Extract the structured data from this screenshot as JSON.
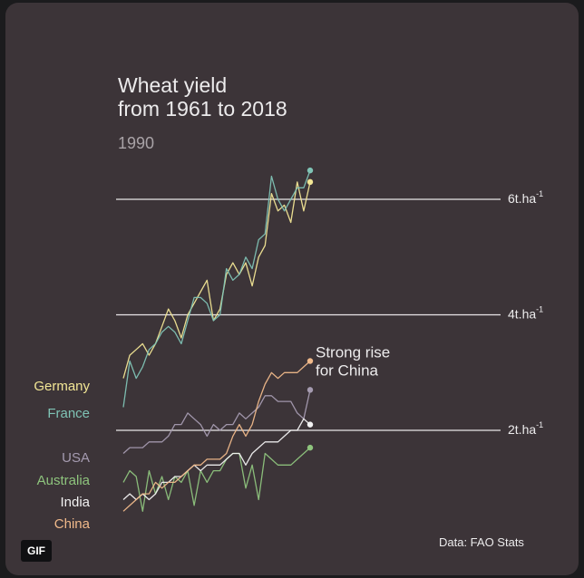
{
  "title_line1": "Wheat yield",
  "title_line2": "from 1961 to 2018",
  "current_year": "1990",
  "source": "Data: FAO Stats",
  "badge": "GIF",
  "legend": [
    {
      "name": "Germany",
      "color": "#f2e695"
    },
    {
      "name": "France",
      "color": "#7fc3b5"
    },
    {
      "name": "USA",
      "color": "#a59bb0"
    },
    {
      "name": "Australia",
      "color": "#8ec47d"
    },
    {
      "name": "India",
      "color": "#f2f2f2"
    },
    {
      "name": "China",
      "color": "#f0b98a"
    }
  ],
  "annotation": {
    "line1": "Strong rise",
    "line2": "for China"
  },
  "chart_data": {
    "type": "line",
    "title": "Wheat yield from 1961 to 2018",
    "subtitle": "1990",
    "y_unit": "t.ha",
    "y_unit_exponent": "-1",
    "ylim": [
      0,
      8
    ],
    "gridlines": [
      2,
      4,
      6
    ],
    "grid_labels": [
      "2t.ha",
      "4t.ha",
      "6t.ha"
    ],
    "x": [
      1961,
      1962,
      1963,
      1964,
      1965,
      1966,
      1967,
      1968,
      1969,
      1970,
      1971,
      1972,
      1973,
      1974,
      1975,
      1976,
      1977,
      1978,
      1979,
      1980,
      1981,
      1982,
      1983,
      1984,
      1985,
      1986,
      1987,
      1988,
      1989,
      1990
    ],
    "series": [
      {
        "name": "Germany",
        "color": "#f2e695",
        "values": [
          2.9,
          3.3,
          3.4,
          3.5,
          3.3,
          3.5,
          3.8,
          4.1,
          3.9,
          3.6,
          4.0,
          4.2,
          4.4,
          4.6,
          3.9,
          4.1,
          4.7,
          4.9,
          4.7,
          4.9,
          4.5,
          5.0,
          5.2,
          6.1,
          5.8,
          5.9,
          5.6,
          6.3,
          5.8,
          6.3
        ]
      },
      {
        "name": "France",
        "color": "#7fc3b5",
        "values": [
          2.4,
          3.2,
          2.9,
          3.1,
          3.4,
          3.5,
          3.7,
          3.8,
          3.7,
          3.5,
          3.9,
          4.3,
          4.3,
          4.2,
          3.9,
          4.0,
          4.8,
          4.6,
          4.7,
          5.0,
          4.8,
          5.3,
          5.4,
          6.4,
          6.0,
          5.8,
          6.0,
          6.2,
          6.2,
          6.5
        ]
      },
      {
        "name": "USA",
        "color": "#a59bb0",
        "values": [
          1.6,
          1.7,
          1.7,
          1.7,
          1.8,
          1.8,
          1.8,
          1.9,
          2.1,
          2.1,
          2.3,
          2.2,
          2.1,
          1.9,
          2.1,
          2.0,
          2.1,
          2.1,
          2.3,
          2.2,
          2.3,
          2.4,
          2.6,
          2.6,
          2.5,
          2.5,
          2.5,
          2.3,
          2.2,
          2.7
        ]
      },
      {
        "name": "Australia",
        "color": "#8ec47d",
        "values": [
          1.1,
          1.3,
          1.2,
          0.6,
          1.3,
          0.9,
          1.2,
          0.8,
          1.2,
          1.1,
          1.3,
          0.7,
          1.3,
          1.1,
          1.3,
          1.3,
          1.5,
          1.6,
          1.6,
          1.0,
          1.4,
          0.8,
          1.6,
          1.5,
          1.4,
          1.4,
          1.4,
          1.5,
          1.6,
          1.7
        ]
      },
      {
        "name": "India",
        "color": "#f2f2f2",
        "values": [
          0.8,
          0.9,
          0.8,
          0.9,
          0.8,
          0.9,
          1.1,
          1.1,
          1.2,
          1.2,
          1.3,
          1.4,
          1.3,
          1.4,
          1.4,
          1.4,
          1.5,
          1.6,
          1.6,
          1.4,
          1.6,
          1.7,
          1.8,
          1.8,
          1.8,
          1.9,
          2.0,
          2.0,
          2.2,
          2.1
        ]
      },
      {
        "name": "China",
        "color": "#f0b98a",
        "values": [
          0.6,
          0.7,
          0.8,
          0.9,
          0.9,
          1.1,
          1.0,
          1.1,
          1.1,
          1.2,
          1.3,
          1.4,
          1.4,
          1.5,
          1.5,
          1.5,
          1.6,
          1.9,
          2.1,
          1.9,
          2.1,
          2.5,
          2.8,
          3.0,
          2.9,
          3.0,
          3.0,
          3.0,
          3.1,
          3.2
        ]
      }
    ]
  }
}
